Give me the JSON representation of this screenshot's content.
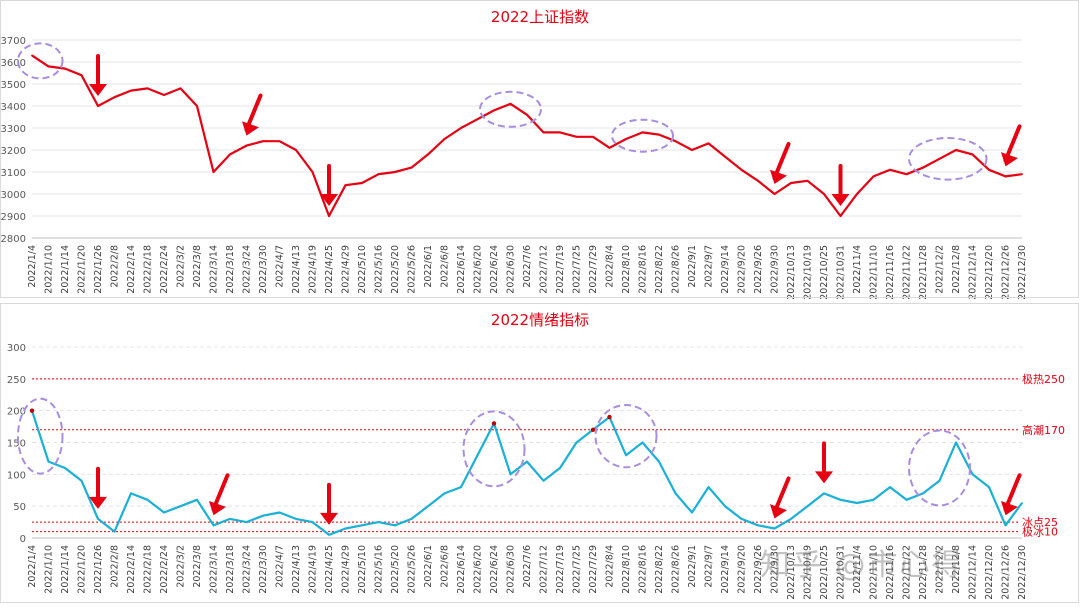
{
  "watermark": "知乎 @市心得",
  "colors": {
    "index_line": "#e60012",
    "emotion_line": "#1ab0d8",
    "emotion_high": "#c00000",
    "refline": "#e60012",
    "title": "#e60012",
    "circle": "#a98ee0",
    "arrow": "#e60012"
  },
  "dates": [
    "2022/1/4",
    "2022/1/10",
    "2022/1/14",
    "2022/1/20",
    "2022/1/26",
    "2022/2/8",
    "2022/2/14",
    "2022/2/18",
    "2022/2/24",
    "2022/3/2",
    "2022/3/8",
    "2022/3/14",
    "2022/3/18",
    "2022/3/24",
    "2022/3/30",
    "2022/4/7",
    "2022/4/13",
    "2022/4/19",
    "2022/4/25",
    "2022/4/29",
    "2022/5/10",
    "2022/5/16",
    "2022/5/20",
    "2022/5/26",
    "2022/6/1",
    "2022/6/8",
    "2022/6/14",
    "2022/6/20",
    "2022/6/24",
    "2022/6/30",
    "2022/7/6",
    "2022/7/12",
    "2022/7/19",
    "2022/7/25",
    "2022/7/29",
    "2022/8/4",
    "2022/8/10",
    "2022/8/16",
    "2022/8/22",
    "2022/8/26",
    "2022/9/1",
    "2022/9/7",
    "2022/9/14",
    "2022/9/20",
    "2022/9/26",
    "2022/9/30",
    "2022/10/13",
    "2022/10/19",
    "2022/10/25",
    "2022/10/31",
    "2022/11/4",
    "2022/11/10",
    "2022/11/16",
    "2022/11/22",
    "2022/11/28",
    "2022/12/2",
    "2022/12/8",
    "2022/12/14",
    "2022/12/20",
    "2022/12/26",
    "2022/12/30"
  ],
  "chart_data": [
    {
      "type": "line",
      "title": "2022上证指数",
      "ylim": [
        2800,
        3700
      ],
      "yticks": [
        2800,
        2900,
        3000,
        3100,
        3200,
        3300,
        3400,
        3500,
        3600,
        3700
      ],
      "series": [
        {
          "values": [
            3630,
            3580,
            3570,
            3540,
            3400,
            3440,
            3470,
            3480,
            3450,
            3480,
            3400,
            3100,
            3180,
            3220,
            3240,
            3240,
            3200,
            3100,
            2900,
            3040,
            3050,
            3090,
            3100,
            3120,
            3180,
            3250,
            3300,
            3340,
            3380,
            3410,
            3360,
            3280,
            3280,
            3260,
            3260,
            3210,
            3250,
            3280,
            3270,
            3240,
            3200,
            3230,
            3170,
            3110,
            3060,
            3000,
            3050,
            3060,
            3000,
            2900,
            3000,
            3080,
            3110,
            3090,
            3120,
            3160,
            3200,
            3180,
            3110,
            3080,
            3090
          ]
        }
      ],
      "highlight_ranges": [
        [
          "2022/1/4",
          "2022/1/10"
        ],
        [
          "2022/6/24",
          "2022/7/6"
        ],
        [
          "2022/8/10",
          "2022/8/22"
        ],
        [
          "2022/11/28",
          "2022/12/14"
        ]
      ],
      "arrows_at": [
        "2022/1/26",
        "2022/3/24",
        "2022/4/25",
        "2022/9/30",
        "2022/10/31",
        "2022/12/26"
      ]
    },
    {
      "type": "line",
      "title": "2022情绪指标",
      "ylim": [
        0,
        300
      ],
      "yticks": [
        0,
        50,
        100,
        150,
        200,
        250,
        300
      ],
      "series": [
        {
          "values": [
            200,
            120,
            110,
            90,
            30,
            10,
            70,
            60,
            40,
            50,
            60,
            20,
            30,
            25,
            35,
            40,
            30,
            25,
            5,
            15,
            20,
            25,
            20,
            30,
            50,
            70,
            80,
            130,
            180,
            100,
            120,
            90,
            110,
            150,
            170,
            190,
            130,
            150,
            120,
            70,
            40,
            80,
            50,
            30,
            20,
            15,
            30,
            50,
            70,
            60,
            55,
            60,
            80,
            60,
            70,
            90,
            150,
            100,
            80,
            20,
            55
          ]
        }
      ],
      "reference_lines": [
        {
          "label": "极热250",
          "value": 250
        },
        {
          "label": "高潮170",
          "value": 170
        },
        {
          "label": "冰点25",
          "value": 25
        },
        {
          "label": "极冰10",
          "value": 10
        }
      ],
      "highlight_ranges": [
        [
          "2022/1/4",
          "2022/1/10"
        ],
        [
          "2022/6/20",
          "2022/6/30"
        ],
        [
          "2022/8/4",
          "2022/8/16"
        ],
        [
          "2022/11/28",
          "2022/12/8"
        ]
      ],
      "arrows_at": [
        "2022/1/26",
        "2022/3/14",
        "2022/4/25",
        "2022/9/30",
        "2022/10/25",
        "2022/12/26"
      ]
    }
  ]
}
